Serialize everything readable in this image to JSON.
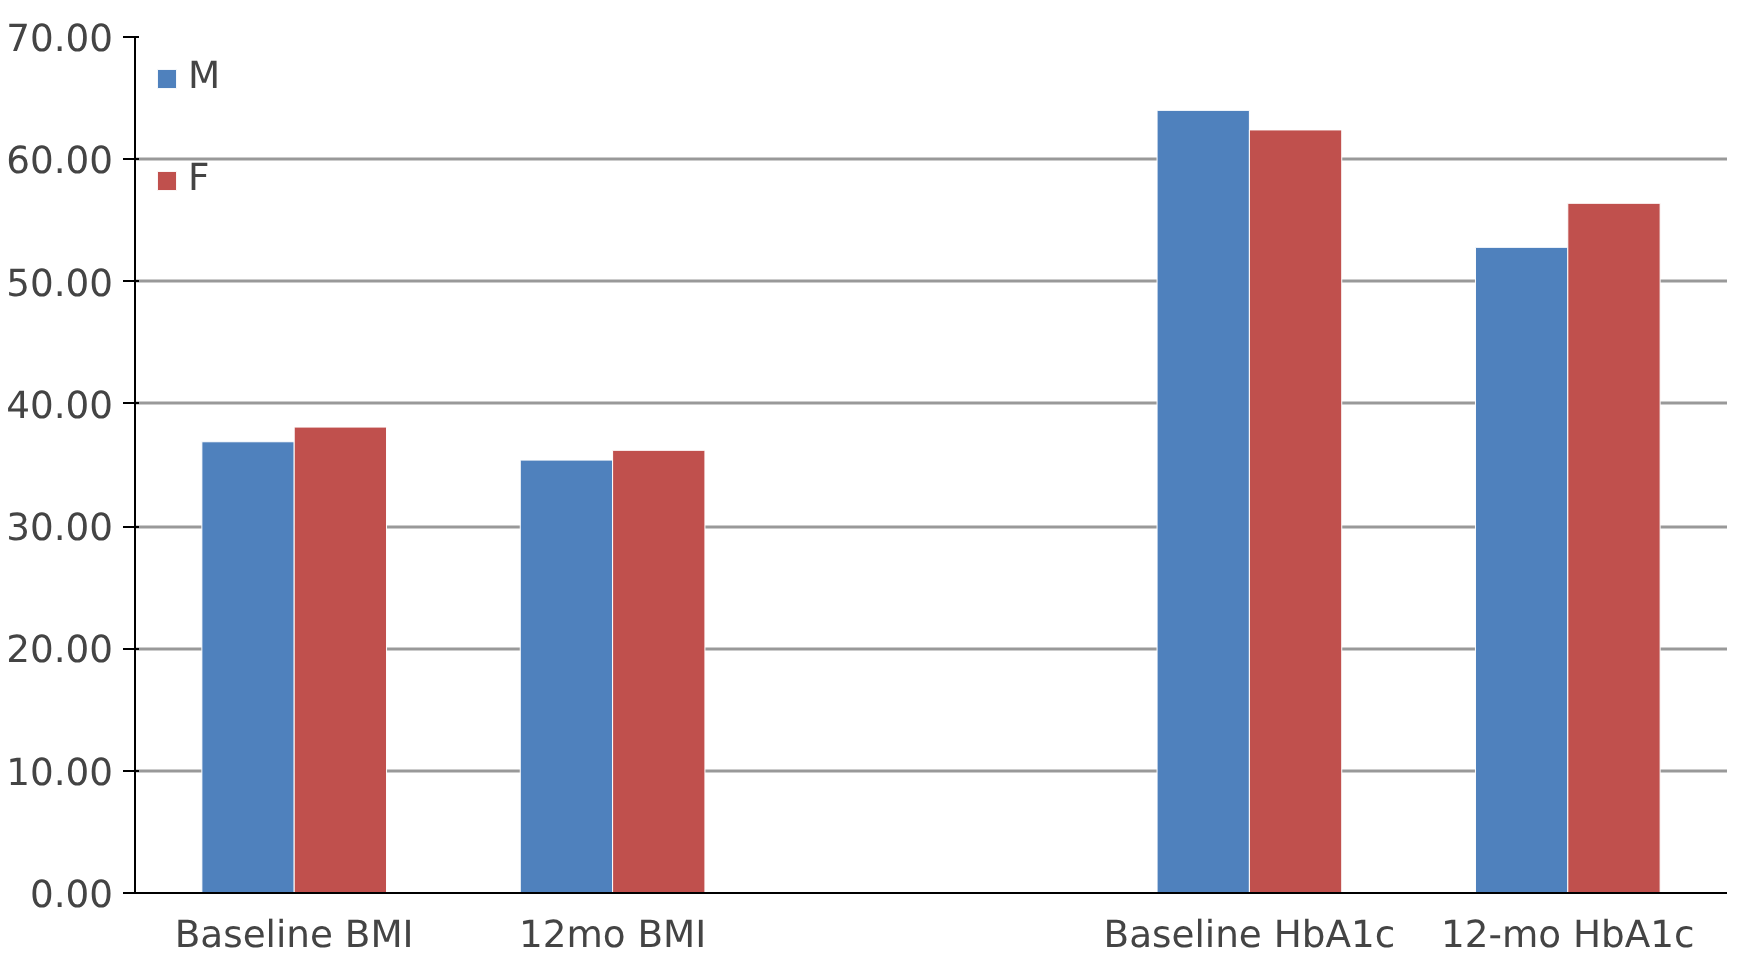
{
  "chart_data": {
    "type": "bar",
    "categories": [
      "Baseline BMI",
      "12mo BMI",
      null,
      "Baseline HbA1c",
      "12-mo HbA1c"
    ],
    "series": [
      {
        "name": "M",
        "color": "#4f81bd",
        "values": [
          36.9,
          35.4,
          null,
          64.0,
          52.8
        ]
      },
      {
        "name": "F",
        "color": "#c0504d",
        "values": [
          38.1,
          36.2,
          null,
          62.4,
          56.4
        ]
      }
    ],
    "ylim": [
      0,
      70
    ],
    "yticks": [
      {
        "value": 0,
        "label": "0.00"
      },
      {
        "value": 10,
        "label": "10.00"
      },
      {
        "value": 20,
        "label": "20.00"
      },
      {
        "value": 30,
        "label": "30.00"
      },
      {
        "value": 40,
        "label": "40.00"
      },
      {
        "value": 50,
        "label": "50.00"
      },
      {
        "value": 60,
        "label": "60.00"
      },
      {
        "value": 70,
        "label": "70.00"
      }
    ],
    "grid": "y",
    "legend": "top left"
  }
}
